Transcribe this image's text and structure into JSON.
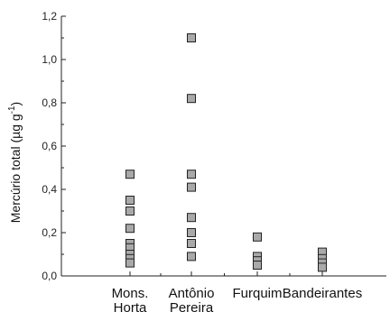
{
  "chart_data": {
    "type": "scatter",
    "ylabel": {
      "main": "Mercúrio total  (µg g",
      "superscript": "-1",
      "close": ")"
    },
    "ylim": [
      0,
      1.2
    ],
    "y_ticks": [
      "0,0",
      "0,2",
      "0,4",
      "0,6",
      "0,8",
      "1,0",
      "1,2"
    ],
    "categories": [
      [
        "Mons.",
        "Horta"
      ],
      [
        "Antônio",
        "Pereira"
      ],
      [
        "Furquim"
      ],
      [
        "Bandeirantes"
      ]
    ],
    "series": [
      {
        "values": [
          0.47,
          0.35,
          0.3,
          0.22,
          0.15,
          0.13,
          0.1,
          0.08,
          0.06
        ]
      },
      {
        "values": [
          1.1,
          1.1,
          0.82,
          0.47,
          0.41,
          0.27,
          0.2,
          0.15,
          0.09
        ]
      },
      {
        "values": [
          0.18,
          0.09,
          0.07,
          0.05
        ]
      },
      {
        "values": [
          0.11,
          0.08,
          0.06,
          0.04
        ]
      }
    ],
    "marker": {
      "shape": "square",
      "fill": "#a9a9a9",
      "stroke": "#222222"
    },
    "grid": false,
    "legend": "none"
  }
}
